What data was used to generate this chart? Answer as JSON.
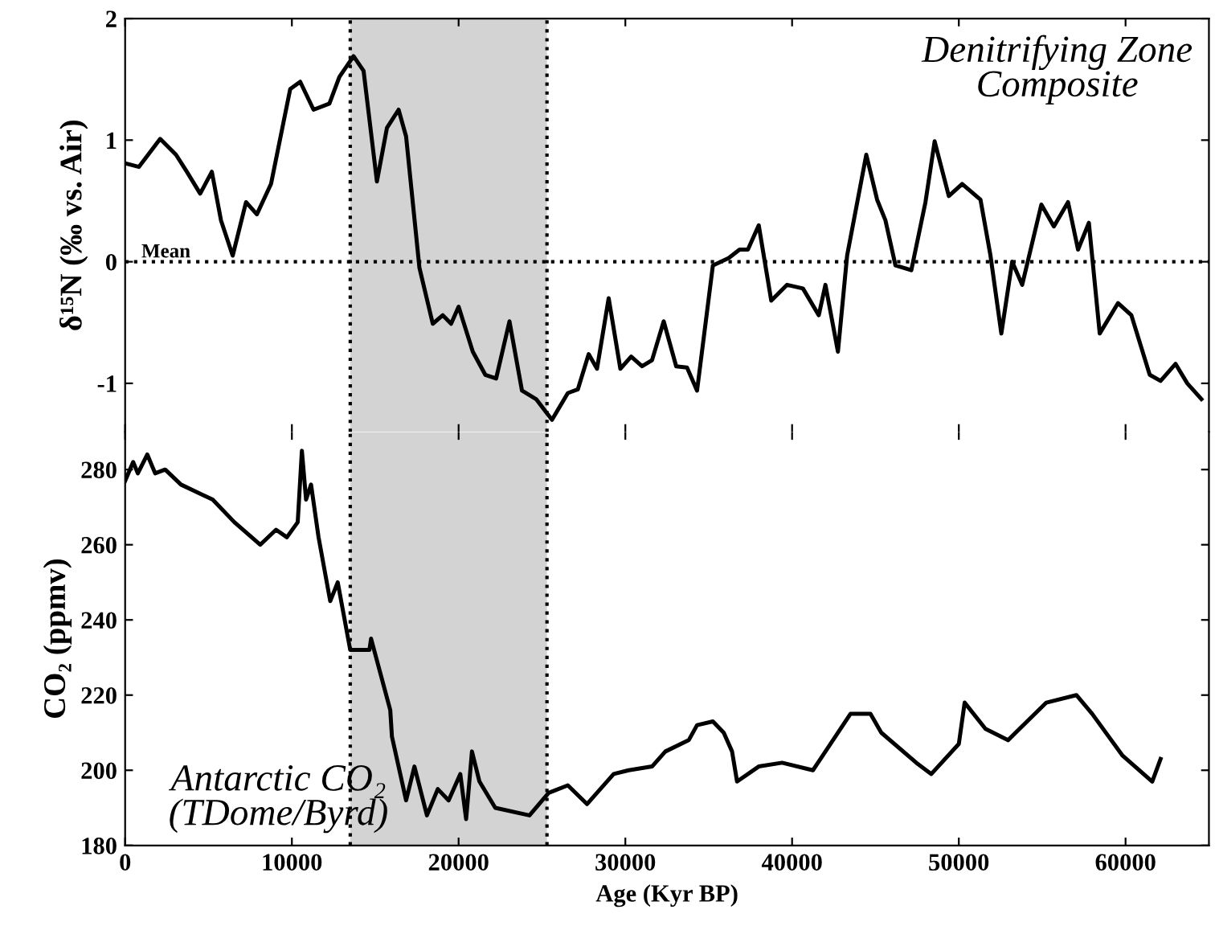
{
  "chart_data": [
    {
      "type": "line",
      "ylabel": "δ¹⁵N (‰ vs. Air)",
      "annotations": [
        "Denitrifying Zone\nComposite"
      ],
      "xlim": [
        0,
        65000
      ],
      "ylim": [
        -1.4,
        2
      ],
      "yticks": [
        -1,
        0,
        1,
        2
      ],
      "tick_labels": "y",
      "ref_lines": [
        {
          "axis": "y",
          "value": 0,
          "label": "Mean",
          "line_style": "dotted",
          "color": "#000000"
        },
        {
          "axis": "x",
          "value": 13500,
          "line_style": "dotted",
          "color": "#000000"
        },
        {
          "axis": "x",
          "value": 25300,
          "line_style": "dotted",
          "color": "#000000"
        }
      ],
      "bands": [
        {
          "axis": "x",
          "from": 13500,
          "to": 25300,
          "color": "#d3d3d3"
        }
      ],
      "series": [
        {
          "color": "#000000",
          "x": [
            0,
            830,
            2100,
            3050,
            3700,
            4500,
            5200,
            5750,
            6450,
            7250,
            7900,
            8750,
            9900,
            10500,
            11300,
            12250,
            12850,
            13700,
            14300,
            15100,
            15700,
            16400,
            16850,
            17650,
            18450,
            19050,
            19550,
            20000,
            20850,
            21600,
            22250,
            23050,
            23800,
            24650,
            25600,
            26550,
            27150,
            27800,
            28300,
            29000,
            29700,
            30350,
            31000,
            31600,
            32300,
            33050,
            33700,
            34300,
            35250,
            36200,
            36850,
            37350,
            38000,
            38750,
            39700,
            40650,
            41600,
            42000,
            42750,
            43300,
            44450,
            45100,
            45600,
            46200,
            47150,
            48000,
            48550,
            49400,
            50200,
            51300,
            51900,
            52550,
            53200,
            53800,
            54950,
            55700,
            56550,
            57150,
            57800,
            58450,
            59550,
            60350,
            61450,
            62100,
            63000,
            63700,
            64550
          ],
          "values": [
            0.81,
            0.78,
            1.01,
            0.88,
            0.74,
            0.56,
            0.74,
            0.34,
            0.05,
            0.49,
            0.39,
            0.64,
            1.42,
            1.48,
            1.25,
            1.3,
            1.52,
            1.69,
            1.57,
            0.66,
            1.1,
            1.25,
            1.03,
            -0.05,
            -0.51,
            -0.44,
            -0.51,
            -0.37,
            -0.74,
            -0.93,
            -0.96,
            -0.49,
            -1.06,
            -1.13,
            -1.3,
            -1.08,
            -1.05,
            -0.76,
            -0.88,
            -0.3,
            -0.88,
            -0.78,
            -0.86,
            -0.81,
            -0.49,
            -0.86,
            -0.87,
            -1.06,
            -0.03,
            0.03,
            0.1,
            0.1,
            0.3,
            -0.32,
            -0.19,
            -0.22,
            -0.44,
            -0.19,
            -0.74,
            0.05,
            0.88,
            0.51,
            0.34,
            -0.03,
            -0.07,
            0.49,
            0.99,
            0.54,
            0.64,
            0.51,
            0.05,
            -0.59,
            0,
            -0.19,
            0.47,
            0.29,
            0.49,
            0.1,
            0.32,
            -0.59,
            -0.34,
            -0.44,
            -0.93,
            -0.98,
            -0.84,
            -1.0,
            -1.13
          ]
        }
      ]
    },
    {
      "type": "line",
      "xlabel": "Age (Kyr BP)",
      "ylabel": "CO₂ (ppmv)",
      "annotations": [
        "Antarctic CO₂\n(TDome/Byrd)"
      ],
      "xlim": [
        0,
        65000
      ],
      "xticks": [
        0,
        10000,
        20000,
        30000,
        40000,
        50000,
        60000
      ],
      "ylim": [
        180,
        290
      ],
      "yticks": [
        180,
        200,
        220,
        240,
        260,
        280
      ],
      "ref_lines": [
        {
          "axis": "x",
          "value": 13500,
          "line_style": "dotted",
          "color": "#000000"
        },
        {
          "axis": "x",
          "value": 25300,
          "line_style": "dotted",
          "color": "#000000"
        }
      ],
      "bands": [
        {
          "axis": "x",
          "from": 13500,
          "to": 25300,
          "color": "#d3d3d3"
        }
      ],
      "series": [
        {
          "color": "#000000",
          "x": [
            0,
            480,
            760,
            1330,
            1800,
            2400,
            3350,
            4300,
            5250,
            6550,
            8100,
            9050,
            9700,
            10350,
            10600,
            10850,
            11150,
            11600,
            12300,
            12750,
            13500,
            14650,
            14750,
            15900,
            16000,
            16850,
            17350,
            18100,
            18750,
            19400,
            20100,
            20450,
            20800,
            21250,
            22200,
            24250,
            25400,
            26550,
            27700,
            29300,
            30200,
            31600,
            32400,
            33800,
            34300,
            35250,
            35900,
            36400,
            36700,
            38000,
            39400,
            41250,
            43500,
            44700,
            45350,
            47450,
            48350,
            50000,
            50350,
            51600,
            52950,
            55250,
            57050,
            58000,
            59800,
            61600,
            62100
          ],
          "values": [
            277,
            282,
            279,
            284,
            279,
            280,
            276,
            274,
            272,
            266,
            260,
            264,
            262,
            266,
            285,
            272,
            276,
            262,
            245,
            250,
            232,
            232,
            235,
            216,
            209,
            192,
            201,
            188,
            195,
            192,
            199,
            187,
            205,
            197,
            190,
            188,
            194,
            196,
            191,
            199,
            200,
            201,
            205,
            208,
            212,
            213,
            210,
            205,
            197,
            201,
            202,
            200,
            215,
            215,
            210,
            202,
            199,
            207,
            218,
            211,
            208,
            218,
            220,
            215,
            204,
            197,
            203
          ]
        }
      ]
    }
  ]
}
